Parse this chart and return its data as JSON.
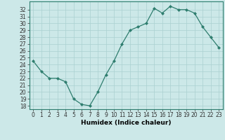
{
  "x": [
    0,
    1,
    2,
    3,
    4,
    5,
    6,
    7,
    8,
    9,
    10,
    11,
    12,
    13,
    14,
    15,
    16,
    17,
    18,
    19,
    20,
    21,
    22,
    23
  ],
  "y": [
    24.5,
    23.0,
    22.0,
    22.0,
    21.5,
    19.0,
    18.2,
    18.0,
    20.0,
    22.5,
    24.5,
    27.0,
    29.0,
    29.5,
    30.0,
    32.2,
    31.5,
    32.5,
    32.0,
    32.0,
    31.5,
    29.5,
    28.0,
    26.5
  ],
  "line_color": "#2e7d6e",
  "marker_color": "#2e7d6e",
  "bg_color": "#cce8e8",
  "grid_color": "#aad0d0",
  "xlabel": "Humidex (Indice chaleur)",
  "ylim": [
    17.5,
    33.2
  ],
  "xlim": [
    -0.5,
    23.5
  ],
  "yticks": [
    18,
    19,
    20,
    21,
    22,
    23,
    24,
    25,
    26,
    27,
    28,
    29,
    30,
    31,
    32
  ],
  "xticks": [
    0,
    1,
    2,
    3,
    4,
    5,
    6,
    7,
    8,
    9,
    10,
    11,
    12,
    13,
    14,
    15,
    16,
    17,
    18,
    19,
    20,
    21,
    22,
    23
  ],
  "tick_fontsize": 5.5,
  "xlabel_fontsize": 6.5
}
